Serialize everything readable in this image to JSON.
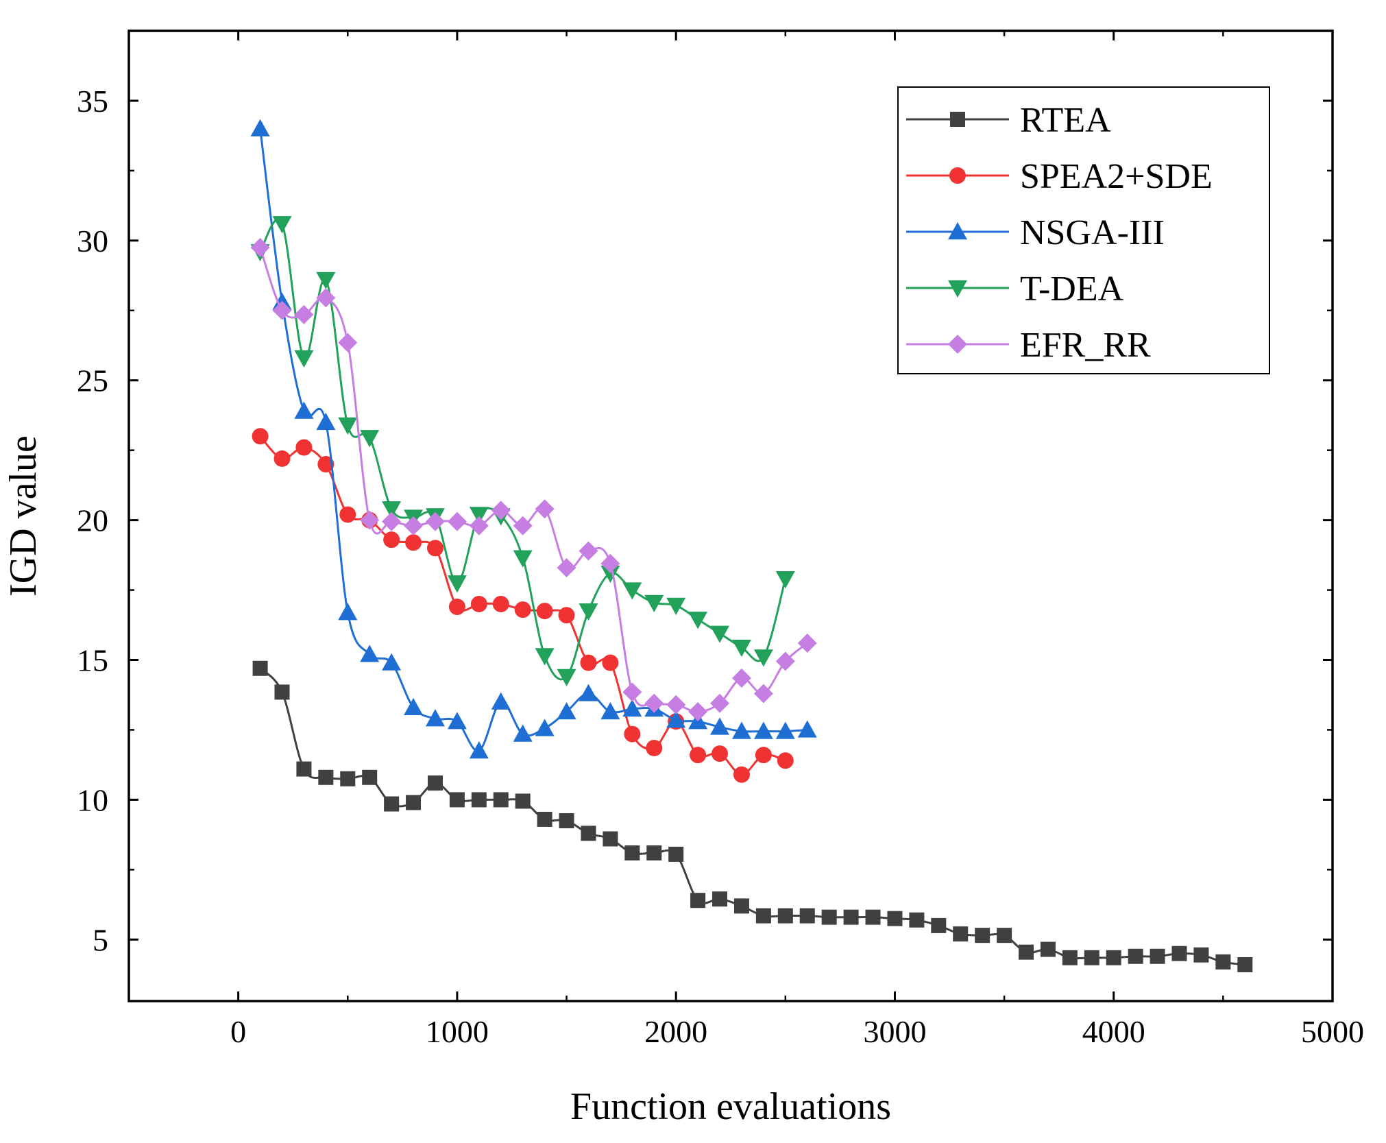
{
  "chart_data": {
    "type": "line",
    "title": "",
    "xlabel": "Function evaluations",
    "ylabel": "IGD value",
    "xlim": [
      -500,
      5000
    ],
    "ylim": [
      2.8,
      37.5
    ],
    "xticks": [
      0,
      1000,
      2000,
      3000,
      4000,
      5000
    ],
    "yticks": [
      5,
      10,
      15,
      20,
      25,
      30,
      35
    ],
    "xtick_labels": [
      "0",
      "1000",
      "2000",
      "3000",
      "4000",
      "5000"
    ],
    "ytick_labels": [
      "5",
      "10",
      "15",
      "20",
      "25",
      "30",
      "35"
    ],
    "grid": false,
    "legend_position": "top-right",
    "series": [
      {
        "name": "RTEA",
        "color": "#404040",
        "marker": "square",
        "x": [
          100,
          200,
          300,
          400,
          500,
          600,
          700,
          800,
          900,
          1000,
          1100,
          1200,
          1300,
          1400,
          1500,
          1600,
          1700,
          1800,
          1900,
          2000,
          2100,
          2200,
          2300,
          2400,
          2500,
          2600,
          2700,
          2800,
          2900,
          3000,
          3100,
          3200,
          3300,
          3400,
          3500,
          3600,
          3700,
          3800,
          3900,
          4000,
          4100,
          4200,
          4300,
          4400,
          4500,
          4600
        ],
        "values": [
          14.7,
          13.85,
          11.1,
          10.8,
          10.75,
          10.8,
          9.85,
          9.9,
          10.6,
          10.0,
          10.0,
          10.0,
          9.95,
          9.3,
          9.25,
          8.8,
          8.6,
          8.1,
          8.1,
          8.05,
          6.4,
          6.45,
          6.2,
          5.85,
          5.85,
          5.85,
          5.8,
          5.8,
          5.8,
          5.75,
          5.7,
          5.5,
          5.2,
          5.15,
          5.15,
          4.55,
          4.65,
          4.35,
          4.35,
          4.35,
          4.4,
          4.4,
          4.5,
          4.45,
          4.2,
          4.1
        ]
      },
      {
        "name": "SPEA2+SDE",
        "color": "#f03232",
        "marker": "circle",
        "x": [
          100,
          200,
          300,
          400,
          500,
          600,
          700,
          800,
          900,
          1000,
          1100,
          1200,
          1300,
          1400,
          1500,
          1600,
          1700,
          1800,
          1900,
          2000,
          2100,
          2200,
          2300,
          2400,
          2500
        ],
        "values": [
          23.0,
          22.2,
          22.6,
          22.0,
          20.2,
          20.0,
          19.3,
          19.2,
          19.0,
          16.9,
          17.0,
          17.0,
          16.8,
          16.75,
          16.6,
          14.9,
          14.9,
          12.35,
          11.85,
          12.8,
          11.6,
          11.65,
          10.9,
          11.6,
          11.4
        ]
      },
      {
        "name": "NSGA-III",
        "color": "#1f6ed4",
        "marker": "triangle-up",
        "x": [
          100,
          200,
          300,
          400,
          500,
          600,
          700,
          800,
          900,
          1000,
          1100,
          1200,
          1300,
          1400,
          1500,
          1600,
          1700,
          1800,
          1900,
          2000,
          2100,
          2200,
          2300,
          2400,
          2500,
          2600
        ],
        "values": [
          34.0,
          27.8,
          23.9,
          23.5,
          16.7,
          15.2,
          14.9,
          13.3,
          12.9,
          12.8,
          11.75,
          13.5,
          12.35,
          12.55,
          13.15,
          13.8,
          13.15,
          13.25,
          13.25,
          12.85,
          12.8,
          12.6,
          12.45,
          12.45,
          12.45,
          12.5
        ]
      },
      {
        "name": "T-DEA",
        "color": "#21a15a",
        "marker": "triangle-down",
        "x": [
          100,
          200,
          300,
          400,
          500,
          600,
          700,
          800,
          900,
          1000,
          1100,
          1200,
          1300,
          1400,
          1500,
          1600,
          1700,
          1800,
          1900,
          2000,
          2100,
          2200,
          2300,
          2400,
          2500
        ],
        "values": [
          29.6,
          30.6,
          25.8,
          28.6,
          23.4,
          22.95,
          20.4,
          20.1,
          20.15,
          17.75,
          20.2,
          20.15,
          18.65,
          15.15,
          14.4,
          16.75,
          18.1,
          17.5,
          17.05,
          16.95,
          16.45,
          15.95,
          15.45,
          15.1,
          17.9
        ]
      },
      {
        "name": "EFR_RR",
        "color": "#c77ee3",
        "marker": "diamond",
        "x": [
          100,
          200,
          300,
          400,
          500,
          600,
          700,
          800,
          900,
          1000,
          1100,
          1200,
          1300,
          1400,
          1500,
          1600,
          1700,
          1800,
          1900,
          2000,
          2100,
          2200,
          2300,
          2400,
          2500,
          2600
        ],
        "values": [
          29.75,
          27.5,
          27.35,
          27.95,
          26.35,
          20.0,
          19.95,
          19.8,
          19.95,
          19.95,
          19.8,
          20.35,
          19.8,
          20.4,
          18.3,
          18.9,
          18.45,
          13.85,
          13.45,
          13.4,
          13.15,
          13.45,
          14.35,
          13.8,
          14.95,
          15.6
        ]
      }
    ]
  }
}
